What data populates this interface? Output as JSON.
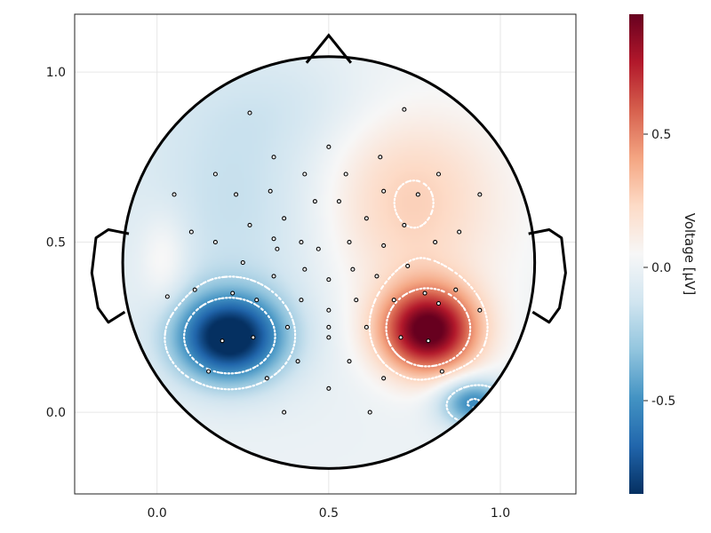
{
  "chart_data": {
    "type": "heatmap",
    "subtype": "eeg-topoplot",
    "title": "",
    "xlabel": "",
    "ylabel": "",
    "xlim": [
      -0.24,
      1.22
    ],
    "ylim": [
      -0.24,
      1.17
    ],
    "x_ticks": [
      0.0,
      0.5,
      1.0
    ],
    "x_tick_labels": [
      "0.0",
      "0.5",
      "1.0"
    ],
    "y_ticks": [
      0.0,
      0.5,
      1.0
    ],
    "y_tick_labels": [
      "0.0",
      "0.5",
      "1.0"
    ],
    "grid": true,
    "head": {
      "center": [
        0.5,
        0.44
      ],
      "radius": 0.6
    },
    "colorbar": {
      "label": "Voltage [µV]",
      "colormap": "RdBu_r",
      "range": [
        -0.85,
        0.95
      ],
      "ticks": [
        -0.5,
        0.0,
        0.5
      ],
      "tick_labels": [
        "-0.5",
        "0.0",
        "0.5"
      ]
    },
    "contour_levels": [
      -0.5,
      -0.25,
      0.25,
      0.5
    ],
    "sources": [
      {
        "x": 0.21,
        "y": 0.22,
        "sx": 0.11,
        "sy": 0.09,
        "amp": -0.92
      },
      {
        "x": 0.79,
        "y": 0.24,
        "sx": 0.1,
        "sy": 0.09,
        "amp": 0.98
      },
      {
        "x": 0.3,
        "y": 0.62,
        "sx": 0.28,
        "sy": 0.3,
        "amp": -0.18
      },
      {
        "x": 0.71,
        "y": 0.62,
        "sx": 0.2,
        "sy": 0.22,
        "amp": 0.32
      },
      {
        "x": 0.92,
        "y": 0.03,
        "sx": 0.07,
        "sy": 0.05,
        "amp": -0.55
      },
      {
        "x": 0.5,
        "y": 0.9,
        "sx": 0.3,
        "sy": 0.1,
        "amp": -0.05
      },
      {
        "x": 0.02,
        "y": 0.45,
        "sx": 0.05,
        "sy": 0.1,
        "amp": 0.15
      }
    ],
    "electrodes": [
      [
        0.27,
        0.88
      ],
      [
        0.72,
        0.89
      ],
      [
        0.5,
        0.78
      ],
      [
        0.34,
        0.75
      ],
      [
        0.65,
        0.75
      ],
      [
        0.17,
        0.7
      ],
      [
        0.43,
        0.7
      ],
      [
        0.55,
        0.7
      ],
      [
        0.82,
        0.7
      ],
      [
        0.05,
        0.64
      ],
      [
        0.23,
        0.64
      ],
      [
        0.33,
        0.65
      ],
      [
        0.46,
        0.62
      ],
      [
        0.53,
        0.62
      ],
      [
        0.66,
        0.65
      ],
      [
        0.76,
        0.64
      ],
      [
        0.94,
        0.64
      ],
      [
        0.37,
        0.57
      ],
      [
        0.61,
        0.57
      ],
      [
        0.1,
        0.53
      ],
      [
        0.27,
        0.55
      ],
      [
        0.72,
        0.55
      ],
      [
        0.88,
        0.53
      ],
      [
        0.17,
        0.5
      ],
      [
        0.34,
        0.51
      ],
      [
        0.42,
        0.5
      ],
      [
        0.56,
        0.5
      ],
      [
        0.66,
        0.49
      ],
      [
        0.81,
        0.5
      ],
      [
        0.35,
        0.48
      ],
      [
        0.47,
        0.48
      ],
      [
        0.25,
        0.44
      ],
      [
        0.43,
        0.42
      ],
      [
        0.57,
        0.42
      ],
      [
        0.73,
        0.43
      ],
      [
        0.34,
        0.4
      ],
      [
        0.5,
        0.39
      ],
      [
        0.64,
        0.4
      ],
      [
        0.11,
        0.36
      ],
      [
        0.22,
        0.35
      ],
      [
        0.78,
        0.35
      ],
      [
        0.87,
        0.36
      ],
      [
        0.03,
        0.34
      ],
      [
        0.29,
        0.33
      ],
      [
        0.42,
        0.33
      ],
      [
        0.58,
        0.33
      ],
      [
        0.69,
        0.33
      ],
      [
        0.82,
        0.32
      ],
      [
        0.5,
        0.3
      ],
      [
        0.94,
        0.3
      ],
      [
        0.38,
        0.25
      ],
      [
        0.5,
        0.25
      ],
      [
        0.61,
        0.25
      ],
      [
        0.28,
        0.22
      ],
      [
        0.5,
        0.22
      ],
      [
        0.71,
        0.22
      ],
      [
        0.19,
        0.21
      ],
      [
        0.79,
        0.21
      ],
      [
        0.41,
        0.15
      ],
      [
        0.56,
        0.15
      ],
      [
        0.15,
        0.12
      ],
      [
        0.83,
        0.12
      ],
      [
        0.32,
        0.1
      ],
      [
        0.66,
        0.1
      ],
      [
        0.5,
        0.07
      ],
      [
        0.37,
        0.0
      ],
      [
        0.62,
        0.0
      ]
    ]
  }
}
